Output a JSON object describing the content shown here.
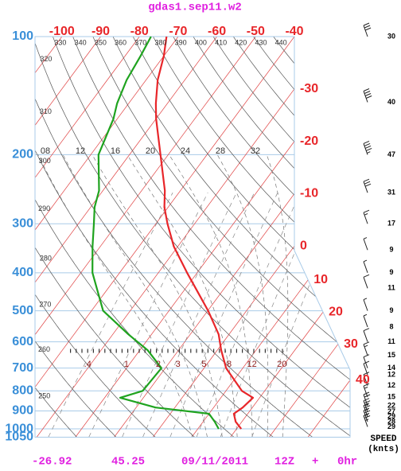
{
  "chart_data": {
    "type": "skewt",
    "title": "gdas1.sep11.w2",
    "pressure": [
      100,
      112,
      129,
      148,
      162,
      200,
      247,
      272,
      300,
      343,
      400,
      500,
      574,
      630,
      700,
      800,
      833,
      882,
      915,
      959,
      1000
    ],
    "series": [
      {
        "color": "#e8262a",
        "values": [
          -73,
          -70,
          -67,
          -63,
          -60,
          -52,
          -44,
          -41,
          -37,
          -31,
          -22.6,
          -9.9,
          -2.7,
          1.0,
          5.7,
          14.1,
          18.3,
          17.5,
          16.4,
          18.4,
          21.2
        ]
      },
      {
        "color": "#1fa31f",
        "values": [
          -77,
          -76,
          -75,
          -73,
          -71,
          -68,
          -61,
          -59,
          -56,
          -52,
          -47,
          -37,
          -26,
          -18,
          -11,
          -11.5,
          -16,
          -5,
          10,
          13,
          15.4
        ]
      }
    ],
    "ylim": [
      1050,
      100
    ],
    "log_y": true,
    "yticks": [
      100,
      200,
      300,
      400,
      500,
      600,
      700,
      800,
      900,
      1000,
      1050
    ],
    "xticks": [
      -100,
      -90,
      -80,
      -70,
      -60,
      -50,
      -40,
      -30,
      -20,
      -10,
      0,
      10,
      20,
      30,
      40
    ],
    "dry_adiabats": [
      250,
      260,
      270,
      280,
      290,
      300,
      310,
      320,
      330,
      340,
      350,
      360,
      370,
      380,
      390,
      400,
      410,
      420,
      430,
      440
    ],
    "moist_adiabats": [
      {
        "value": 8,
        "label": "08"
      },
      12,
      16,
      20,
      24,
      28,
      32
    ],
    "mixing_ratios": [
      {
        "value": 0.4,
        "label": ".4"
      },
      1,
      2,
      3,
      5,
      8,
      12,
      20
    ],
    "grid": true,
    "wind": {
      "pressure": [
        100,
        147,
        200,
        250,
        300,
        350,
        400,
        438,
        500,
        550,
        600,
        650,
        700,
        728,
        776,
        830,
        873,
        905,
        931,
        959,
        988
      ],
      "speed": [
        30,
        40,
        47,
        31,
        17,
        9,
        9,
        11,
        9,
        8,
        11,
        15,
        14,
        12,
        12,
        15,
        22,
        27,
        29,
        28,
        29
      ],
      "title": "SPEED",
      "unit": "(knts)"
    },
    "footer": {
      "lat": -26.92,
      "lon": 45.25,
      "date": "09/11/2011",
      "time": "12Z",
      "plus": "+",
      "forecast": "0hr"
    }
  }
}
